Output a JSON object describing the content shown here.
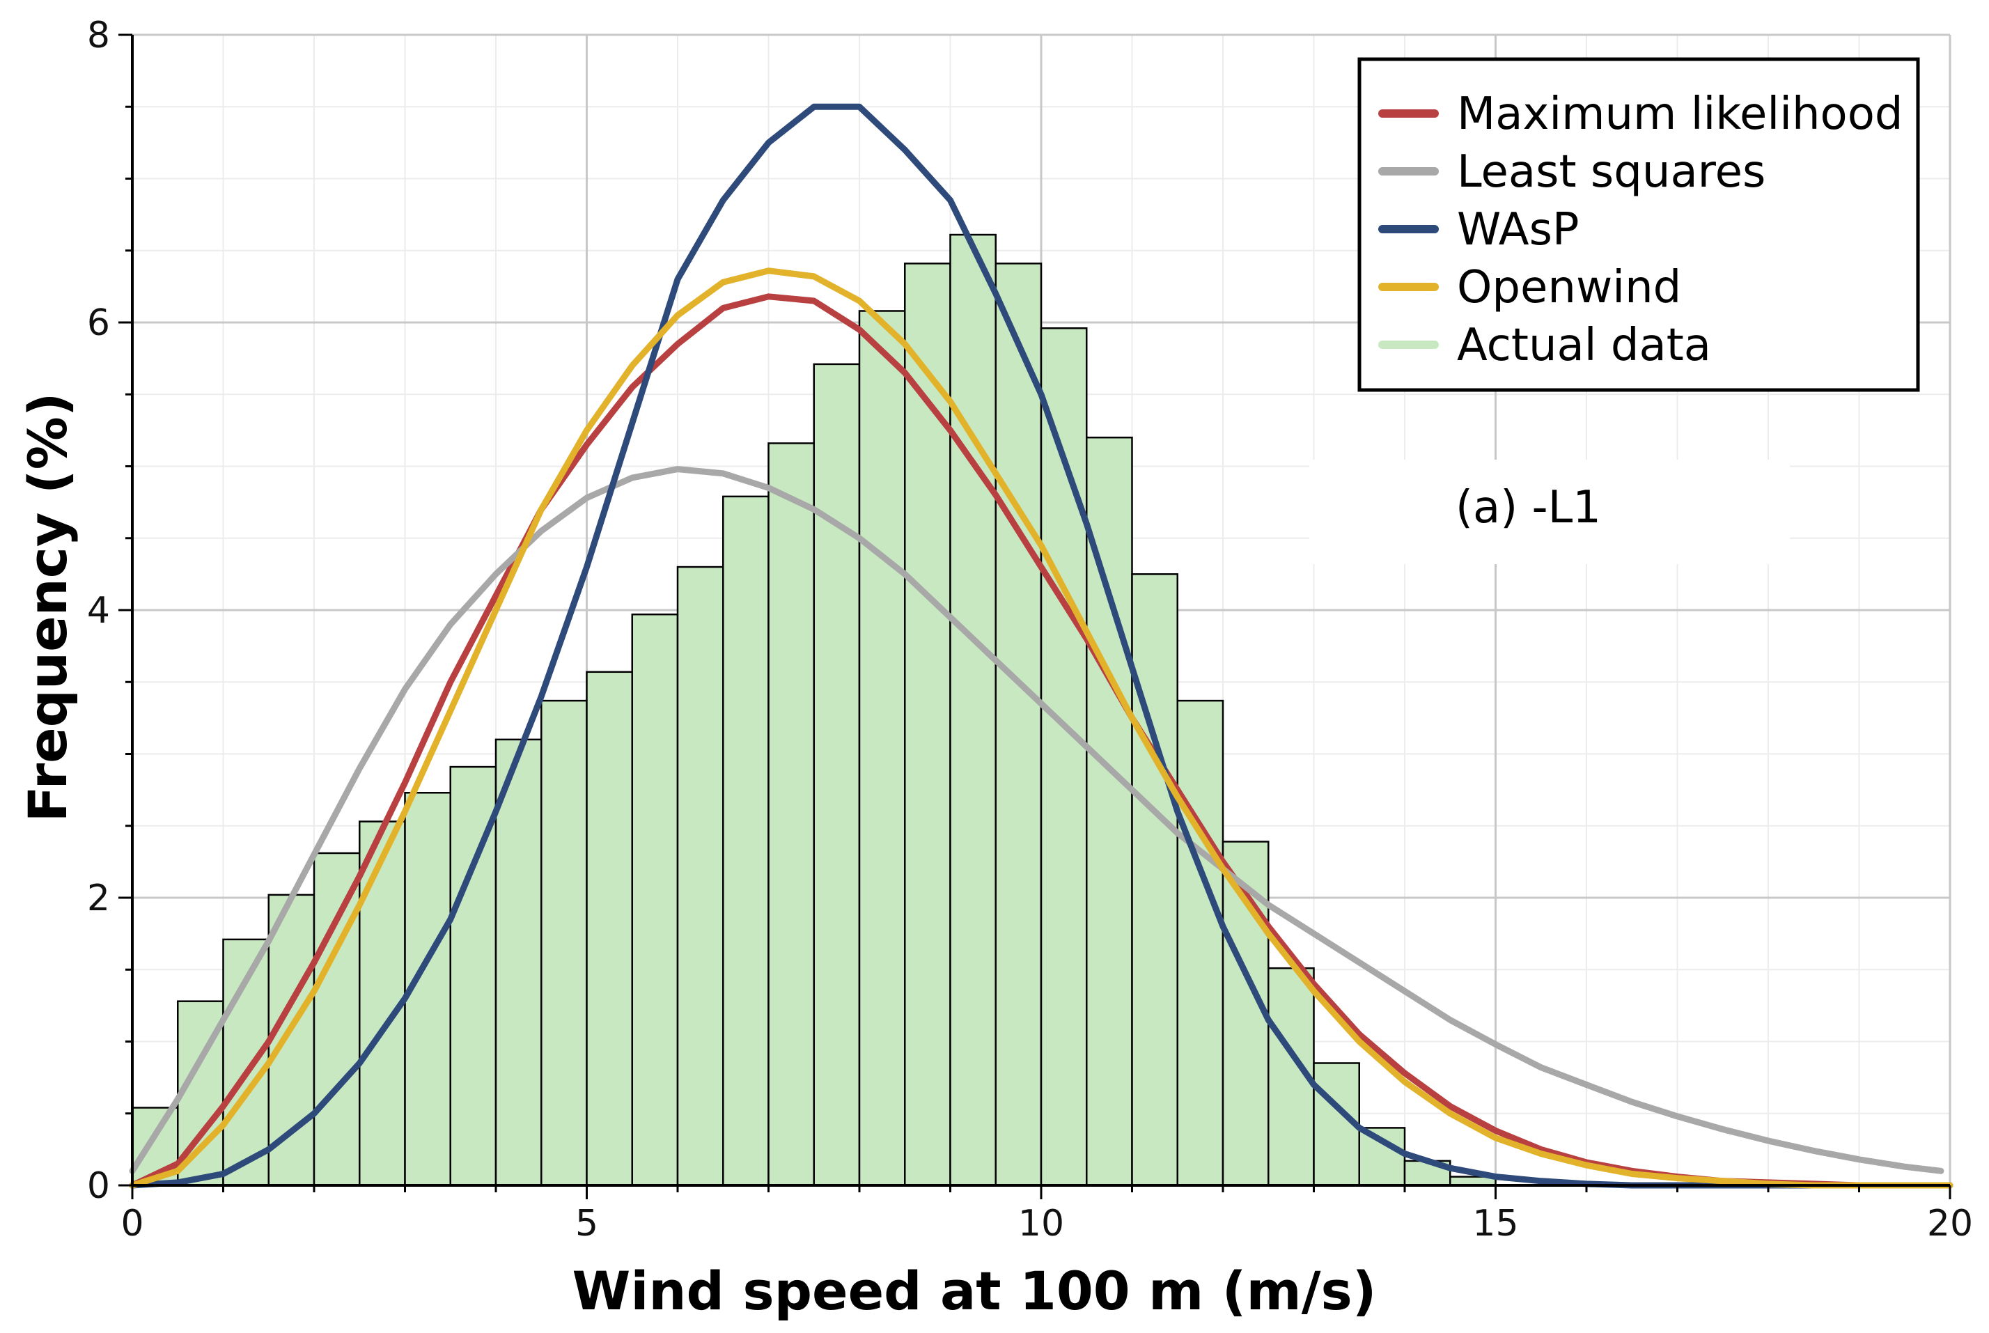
{
  "chart_data": {
    "type": "bar",
    "title": "",
    "xlabel": "Wind speed at 100 m (m/s)",
    "ylabel": "Frequency (%)",
    "xlim": [
      0,
      20
    ],
    "ylim": [
      0,
      8
    ],
    "xticks": [
      0,
      5,
      10,
      15,
      20
    ],
    "yticks": [
      0,
      2,
      4,
      6,
      8
    ],
    "grid": true,
    "legend_position": "top-right",
    "annotation": "(a)  -L1",
    "histogram": {
      "name": "Actual data",
      "color": "#c8e8c2",
      "bin_width": 0.5,
      "bin_starts": [
        0,
        0.5,
        1,
        1.5,
        2,
        2.5,
        3,
        3.5,
        4,
        4.5,
        5,
        5.5,
        6,
        6.5,
        7,
        7.5,
        8,
        8.5,
        9,
        9.5,
        10,
        10.5,
        11,
        11.5,
        12,
        12.5,
        13,
        13.5,
        14,
        14.5
      ],
      "values": [
        0.54,
        1.28,
        1.71,
        2.02,
        2.31,
        2.53,
        2.73,
        2.91,
        3.1,
        3.37,
        3.57,
        3.97,
        4.3,
        4.79,
        5.16,
        5.71,
        6.08,
        6.41,
        6.61,
        6.41,
        5.96,
        5.2,
        4.25,
        3.37,
        2.39,
        1.51,
        0.85,
        0.4,
        0.17,
        0.06
      ]
    },
    "series": [
      {
        "name": "Maximum likelihood",
        "color": "#b94040",
        "x": [
          0,
          0.5,
          1,
          1.5,
          2,
          2.5,
          3,
          3.5,
          4,
          4.5,
          5,
          5.5,
          6,
          6.5,
          7,
          7.5,
          8,
          8.5,
          9,
          9.5,
          10,
          10.5,
          11,
          11.5,
          12,
          12.5,
          13,
          13.5,
          14,
          14.5,
          15,
          15.5,
          16,
          16.5,
          17,
          17.5,
          18,
          18.5,
          19,
          19.5,
          20
        ],
        "values": [
          0.0,
          0.15,
          0.55,
          1.0,
          1.55,
          2.15,
          2.8,
          3.5,
          4.1,
          4.7,
          5.15,
          5.55,
          5.85,
          6.1,
          6.18,
          6.15,
          5.95,
          5.65,
          5.25,
          4.8,
          4.3,
          3.8,
          3.25,
          2.75,
          2.25,
          1.8,
          1.4,
          1.05,
          0.78,
          0.55,
          0.38,
          0.25,
          0.16,
          0.1,
          0.06,
          0.03,
          0.02,
          0.01,
          0.0,
          0.0,
          0.0
        ]
      },
      {
        "name": "Least squares",
        "color": "#a8a8a8",
        "x": [
          0,
          0.5,
          1,
          1.5,
          2,
          2.5,
          3,
          3.5,
          4,
          4.5,
          5,
          5.5,
          6,
          6.5,
          7,
          7.5,
          8,
          8.5,
          9,
          9.5,
          10,
          10.5,
          11,
          11.5,
          12,
          12.5,
          13,
          13.5,
          14,
          14.5,
          15,
          15.5,
          16,
          16.5,
          17,
          17.5,
          18,
          18.5,
          19,
          19.5,
          19.9
        ],
        "values": [
          0.1,
          0.6,
          1.15,
          1.7,
          2.3,
          2.9,
          3.45,
          3.9,
          4.25,
          4.55,
          4.78,
          4.92,
          4.98,
          4.95,
          4.85,
          4.7,
          4.5,
          4.25,
          3.95,
          3.65,
          3.35,
          3.05,
          2.75,
          2.45,
          2.2,
          1.95,
          1.75,
          1.55,
          1.35,
          1.15,
          0.98,
          0.82,
          0.7,
          0.58,
          0.48,
          0.39,
          0.31,
          0.24,
          0.18,
          0.13,
          0.1
        ]
      },
      {
        "name": "WAsP",
        "color": "#2e4a7a",
        "x": [
          0,
          0.5,
          1,
          1.5,
          2,
          2.5,
          3,
          3.5,
          4,
          4.5,
          5,
          5.5,
          6,
          6.5,
          7,
          7.5,
          8,
          8.5,
          9,
          9.5,
          10,
          10.5,
          11,
          11.5,
          12,
          12.5,
          13,
          13.5,
          14,
          14.5,
          15,
          15.5,
          16,
          16.5,
          17,
          17.5,
          18,
          18.5,
          19,
          19.5,
          20
        ],
        "values": [
          0.0,
          0.02,
          0.08,
          0.25,
          0.5,
          0.85,
          1.3,
          1.85,
          2.6,
          3.4,
          4.3,
          5.3,
          6.3,
          6.85,
          7.25,
          7.5,
          7.5,
          7.2,
          6.85,
          6.2,
          5.5,
          4.6,
          3.6,
          2.6,
          1.8,
          1.15,
          0.7,
          0.4,
          0.22,
          0.12,
          0.06,
          0.03,
          0.01,
          0.0,
          0.0,
          0.0,
          0.0,
          0.0,
          0.0,
          0.0,
          0.0
        ]
      },
      {
        "name": "Openwind",
        "color": "#e2b32a",
        "x": [
          0,
          0.5,
          1,
          1.5,
          2,
          2.5,
          3,
          3.5,
          4,
          4.5,
          5,
          5.5,
          6,
          6.5,
          7,
          7.5,
          8,
          8.5,
          9,
          9.5,
          10,
          10.5,
          11,
          11.5,
          12,
          12.5,
          13,
          13.5,
          14,
          14.5,
          15,
          15.5,
          16,
          16.5,
          17,
          17.5,
          18,
          18.5,
          19,
          19.5,
          20
        ],
        "values": [
          0.0,
          0.1,
          0.42,
          0.85,
          1.35,
          1.95,
          2.6,
          3.3,
          4.0,
          4.7,
          5.25,
          5.7,
          6.05,
          6.28,
          6.36,
          6.32,
          6.15,
          5.85,
          5.45,
          4.95,
          4.45,
          3.85,
          3.25,
          2.7,
          2.2,
          1.75,
          1.35,
          1.0,
          0.72,
          0.5,
          0.33,
          0.22,
          0.14,
          0.08,
          0.05,
          0.03,
          0.01,
          0.0,
          0.0,
          0.0,
          0.0
        ]
      }
    ]
  }
}
